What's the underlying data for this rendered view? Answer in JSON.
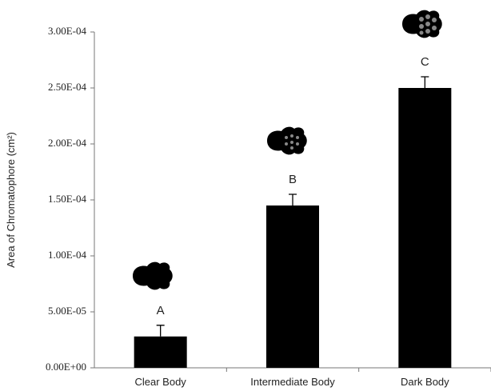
{
  "chart_data": {
    "type": "bar",
    "y_label": "Area of Chromatophore (cm²)",
    "categories": [
      "Clear Body",
      "Intermediate Body",
      "Dark Body"
    ],
    "values": [
      2.8e-05,
      0.000145,
      0.00025
    ],
    "errors": [
      1e-05,
      1e-05,
      1e-05
    ],
    "annotations": [
      "A",
      "B",
      "C"
    ],
    "color": "#000000",
    "ylim": [
      0,
      0.0003
    ],
    "yticks": [
      {
        "value": 0,
        "label": "0.00E+00"
      },
      {
        "value": 5e-05,
        "label": "5.00E-05"
      },
      {
        "value": 0.0001,
        "label": "1.00E-04"
      },
      {
        "value": 0.00015,
        "label": "1.50E-04"
      },
      {
        "value": 0.0002,
        "label": "2.00E-04"
      },
      {
        "value": 0.00025,
        "label": "2.50E-04"
      },
      {
        "value": 0.0003,
        "label": "3.00E-04"
      }
    ],
    "grid": false
  }
}
